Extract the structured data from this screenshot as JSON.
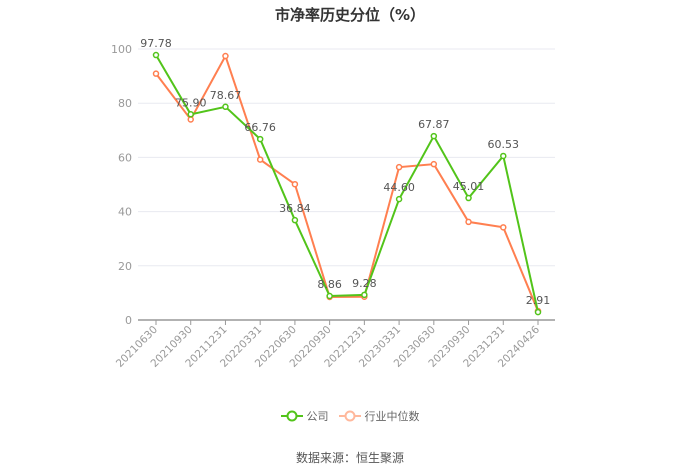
{
  "chart_data": {
    "type": "line",
    "title": "市净率历史分位（%）",
    "categories": [
      "20210630",
      "20210930",
      "20211231",
      "20220331",
      "20220630",
      "20220930",
      "20221231",
      "20230331",
      "20230630",
      "20230930",
      "20231231",
      "20240426"
    ],
    "series": [
      {
        "name": "公司",
        "color": "#52c41a",
        "values": [
          97.78,
          75.9,
          78.67,
          66.76,
          36.84,
          8.86,
          9.28,
          44.6,
          67.87,
          45.01,
          60.53,
          2.91
        ],
        "labels": [
          "97.78",
          "75.90",
          "78.67",
          "66.76",
          "36.84",
          "8.86",
          "9.28",
          "44.60",
          "67.87",
          "45.01",
          "60.53",
          "2.91"
        ]
      },
      {
        "name": "行业中位数",
        "color": "#ff7f50",
        "values": [
          90.9,
          74.0,
          97.4,
          59.2,
          50.1,
          8.5,
          8.6,
          56.4,
          57.5,
          36.2,
          34.2,
          3.3
        ]
      }
    ],
    "ylim": [
      0,
      100
    ],
    "yticks": [
      0,
      20,
      40,
      60,
      80,
      100
    ],
    "grid": true,
    "legend": "bottom"
  },
  "source": "数据来源：恒生聚源"
}
